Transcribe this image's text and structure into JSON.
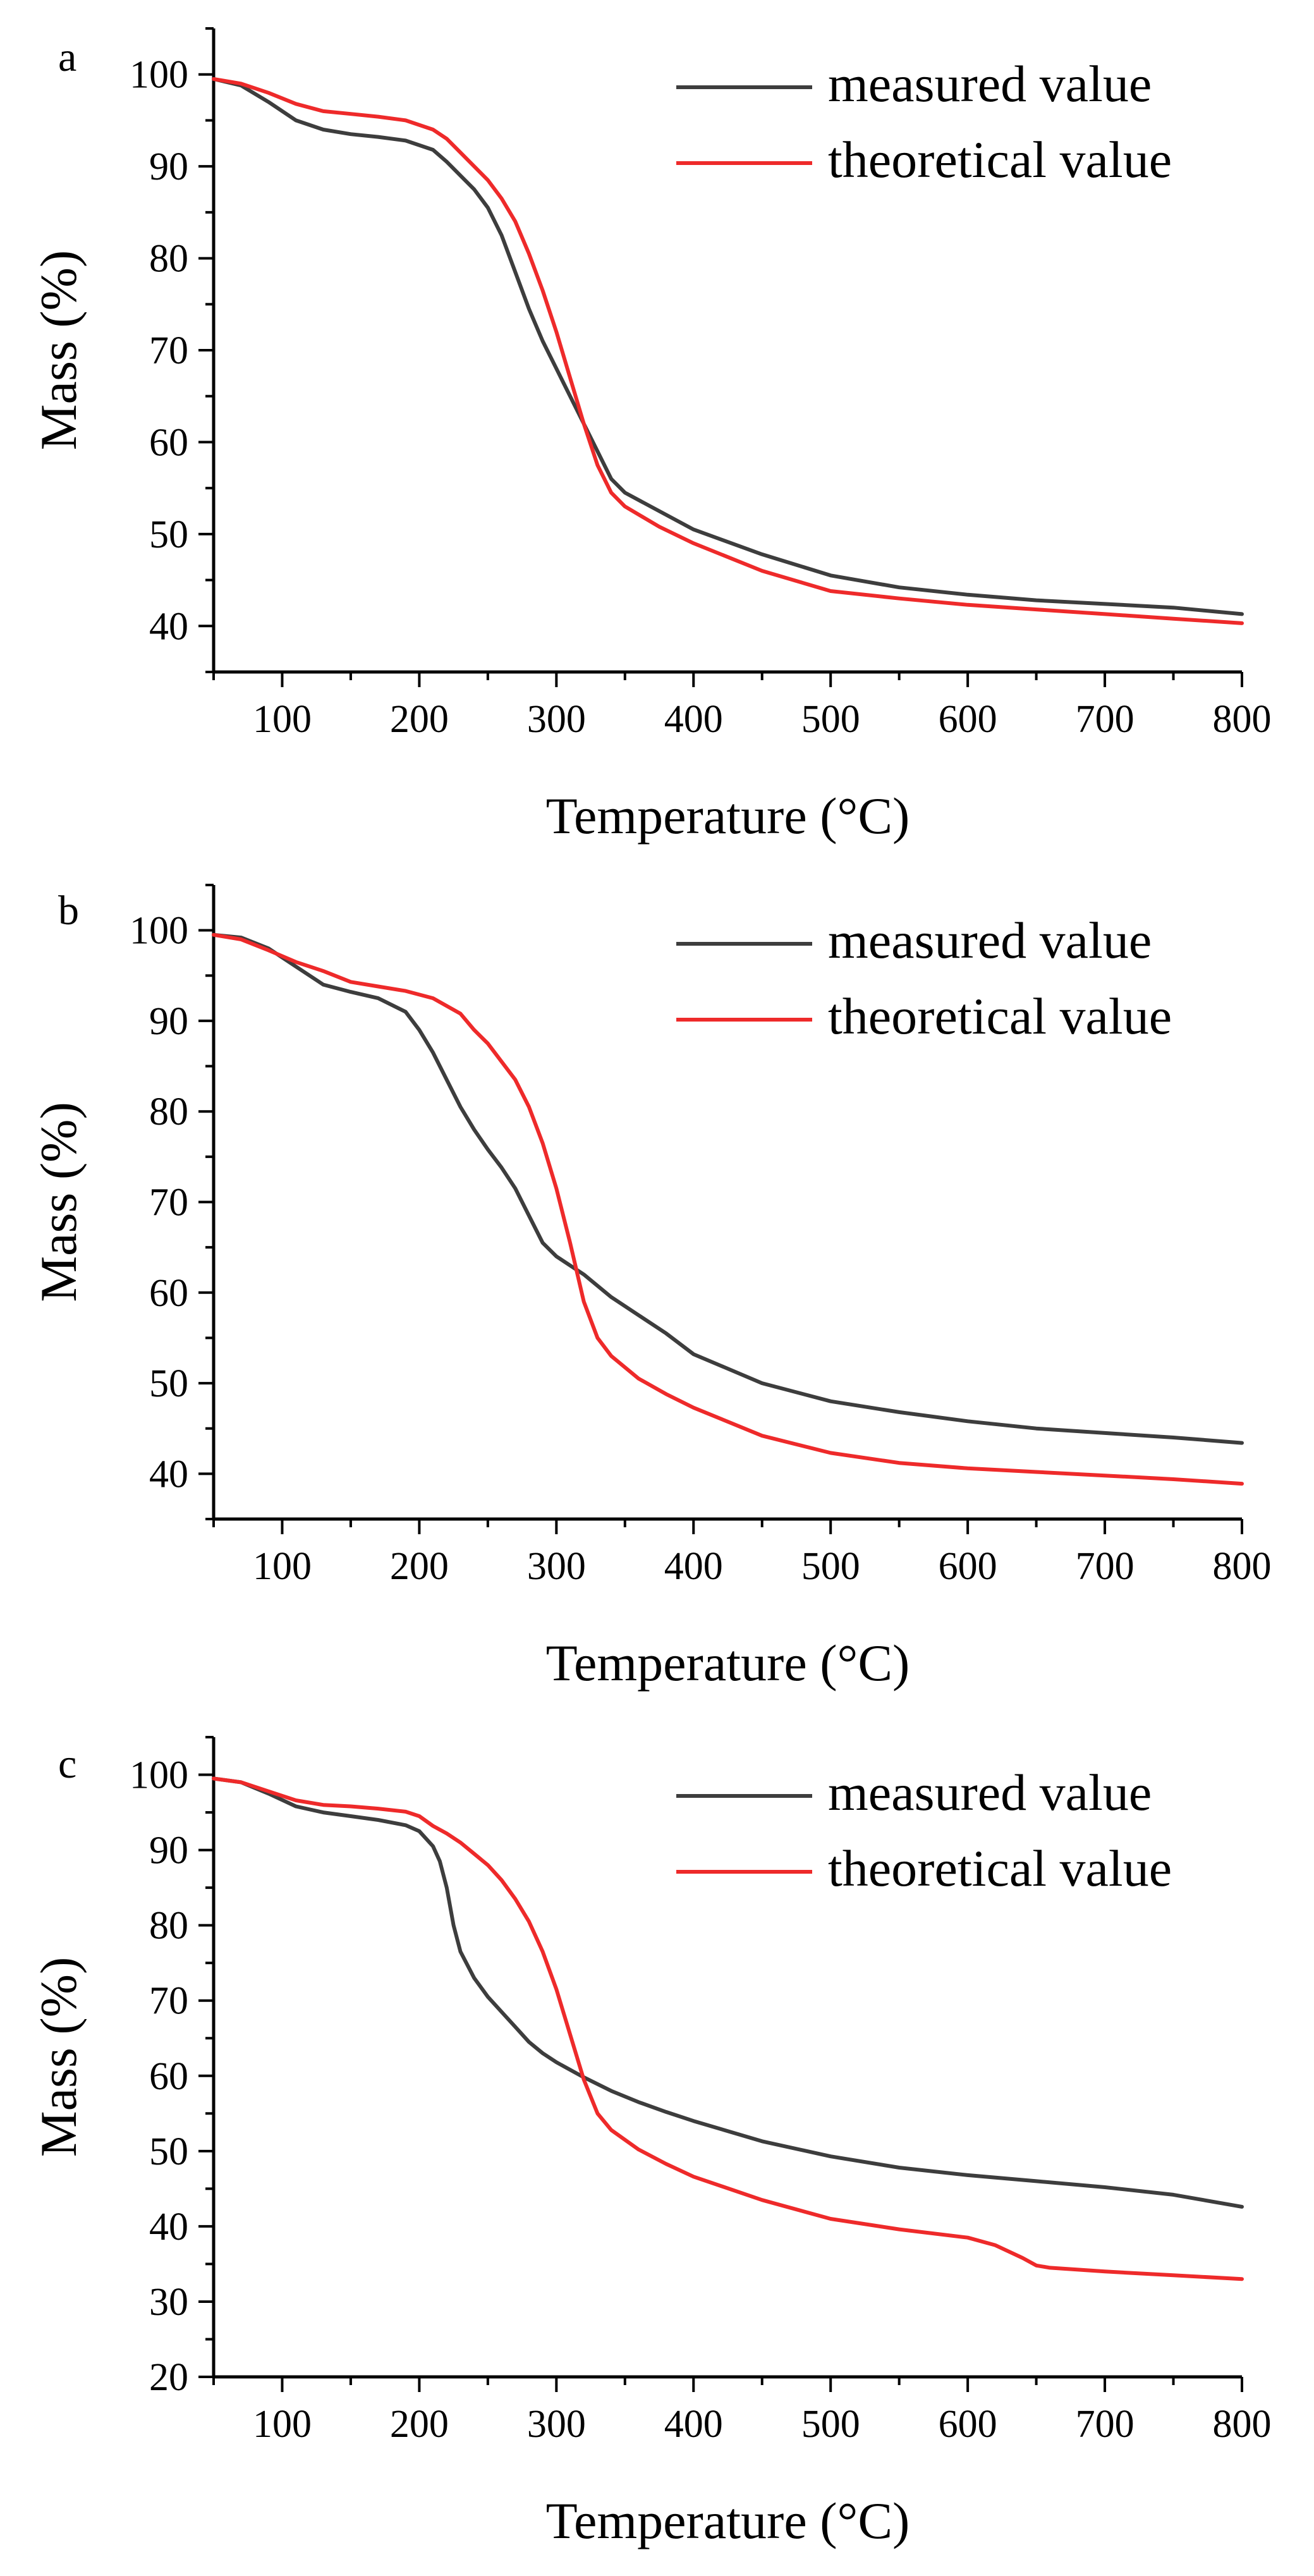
{
  "colors": {
    "measured": "#3d3d3d",
    "theoretical": "#ee2a2a"
  },
  "chart_data": [
    {
      "type": "line",
      "panel_label": "a",
      "xlabel": "Temperature (°C)",
      "ylabel": "Mass (%)",
      "xlim": [
        50,
        800
      ],
      "ylim": [
        35,
        105
      ],
      "xticks": [
        100,
        200,
        300,
        400,
        500,
        600,
        700,
        800
      ],
      "yticks": [
        40,
        50,
        60,
        70,
        80,
        90,
        100
      ],
      "legend_position": "top-right",
      "series": [
        {
          "name": "measured value",
          "color_key": "measured",
          "x": [
            50,
            70,
            90,
            110,
            130,
            150,
            170,
            190,
            210,
            220,
            230,
            240,
            250,
            260,
            270,
            280,
            290,
            300,
            310,
            320,
            330,
            340,
            350,
            375,
            400,
            450,
            500,
            550,
            600,
            650,
            700,
            750,
            800
          ],
          "y": [
            99.5,
            98.8,
            97.0,
            95.0,
            94.0,
            93.5,
            93.2,
            92.8,
            91.8,
            90.5,
            89.0,
            87.5,
            85.5,
            82.5,
            78.5,
            74.5,
            71.0,
            68.0,
            65.0,
            62.0,
            59.0,
            56.0,
            54.5,
            52.5,
            50.5,
            47.8,
            45.5,
            44.2,
            43.4,
            42.8,
            42.4,
            42.0,
            41.3
          ]
        },
        {
          "name": "theoretical value",
          "color_key": "theoretical",
          "x": [
            50,
            70,
            90,
            110,
            130,
            150,
            170,
            190,
            210,
            220,
            230,
            240,
            250,
            260,
            270,
            280,
            290,
            300,
            310,
            320,
            330,
            340,
            350,
            375,
            400,
            450,
            500,
            550,
            600,
            650,
            700,
            750,
            800
          ],
          "y": [
            99.5,
            99.0,
            98.0,
            96.8,
            96.0,
            95.7,
            95.4,
            95.0,
            94.0,
            93.0,
            91.5,
            90.0,
            88.5,
            86.5,
            84.0,
            80.5,
            76.5,
            72.0,
            67.0,
            62.0,
            57.5,
            54.5,
            53.0,
            50.8,
            49.0,
            46.0,
            43.8,
            43.0,
            42.3,
            41.8,
            41.3,
            40.8,
            40.3
          ]
        }
      ]
    },
    {
      "type": "line",
      "panel_label": "b",
      "xlabel": "Temperature (°C)",
      "ylabel": "Mass (%)",
      "xlim": [
        50,
        800
      ],
      "ylim": [
        35,
        105
      ],
      "xticks": [
        100,
        200,
        300,
        400,
        500,
        600,
        700,
        800
      ],
      "yticks": [
        40,
        50,
        60,
        70,
        80,
        90,
        100
      ],
      "legend_position": "top-right",
      "series": [
        {
          "name": "measured value",
          "color_key": "measured",
          "x": [
            50,
            70,
            90,
            110,
            130,
            150,
            170,
            190,
            200,
            210,
            220,
            230,
            240,
            250,
            260,
            270,
            280,
            290,
            300,
            320,
            340,
            360,
            380,
            400,
            450,
            500,
            550,
            600,
            650,
            700,
            750,
            800
          ],
          "y": [
            99.5,
            99.2,
            98.0,
            96.0,
            94.0,
            93.2,
            92.5,
            91.0,
            89.0,
            86.5,
            83.5,
            80.5,
            78.0,
            75.8,
            73.8,
            71.5,
            68.5,
            65.5,
            64.0,
            62.0,
            59.5,
            57.5,
            55.5,
            53.2,
            50.0,
            48.0,
            46.8,
            45.8,
            45.0,
            44.5,
            44.0,
            43.4
          ]
        },
        {
          "name": "theoretical value",
          "color_key": "theoretical",
          "x": [
            50,
            70,
            90,
            110,
            130,
            150,
            170,
            190,
            210,
            230,
            240,
            250,
            260,
            270,
            280,
            290,
            300,
            310,
            320,
            330,
            340,
            360,
            380,
            400,
            450,
            500,
            550,
            600,
            650,
            700,
            750,
            800
          ],
          "y": [
            99.5,
            99.0,
            97.8,
            96.5,
            95.5,
            94.3,
            93.8,
            93.3,
            92.5,
            90.8,
            89.0,
            87.5,
            85.5,
            83.5,
            80.5,
            76.5,
            71.5,
            65.5,
            59.0,
            55.0,
            53.0,
            50.5,
            48.8,
            47.3,
            44.2,
            42.3,
            41.2,
            40.6,
            40.2,
            39.8,
            39.4,
            38.9
          ]
        }
      ]
    },
    {
      "type": "line",
      "panel_label": "c",
      "xlabel": "Temperature (°C)",
      "ylabel": "Mass (%)",
      "xlim": [
        50,
        800
      ],
      "ylim": [
        20,
        105
      ],
      "xticks": [
        100,
        200,
        300,
        400,
        500,
        600,
        700,
        800
      ],
      "yticks": [
        20,
        30,
        40,
        50,
        60,
        70,
        80,
        90,
        100
      ],
      "legend_position": "top-right",
      "series": [
        {
          "name": "measured value",
          "color_key": "measured",
          "x": [
            50,
            70,
            90,
            110,
            130,
            150,
            170,
            190,
            200,
            210,
            215,
            220,
            225,
            230,
            240,
            250,
            260,
            270,
            280,
            290,
            300,
            320,
            340,
            360,
            380,
            400,
            450,
            500,
            550,
            600,
            650,
            700,
            750,
            800
          ],
          "y": [
            99.5,
            99.0,
            97.5,
            95.8,
            95.0,
            94.5,
            94.0,
            93.3,
            92.5,
            90.5,
            88.5,
            85.0,
            80.0,
            76.5,
            73.0,
            70.5,
            68.5,
            66.5,
            64.5,
            63.0,
            61.8,
            59.8,
            58.0,
            56.5,
            55.2,
            54.0,
            51.3,
            49.3,
            47.8,
            46.8,
            46.0,
            45.2,
            44.2,
            42.6
          ]
        },
        {
          "name": "theoretical value",
          "color_key": "theoretical",
          "x": [
            50,
            70,
            90,
            110,
            130,
            150,
            170,
            190,
            200,
            210,
            220,
            230,
            240,
            250,
            260,
            270,
            280,
            290,
            300,
            310,
            320,
            330,
            340,
            360,
            380,
            400,
            450,
            500,
            550,
            600,
            620,
            640,
            650,
            660,
            700,
            750,
            800
          ],
          "y": [
            99.5,
            99.0,
            97.8,
            96.6,
            96.0,
            95.8,
            95.5,
            95.1,
            94.5,
            93.2,
            92.2,
            91.0,
            89.5,
            88.0,
            86.0,
            83.5,
            80.5,
            76.5,
            71.5,
            65.5,
            59.5,
            55.0,
            52.8,
            50.2,
            48.3,
            46.6,
            43.5,
            41.0,
            39.6,
            38.5,
            37.5,
            35.8,
            34.8,
            34.5,
            34.0,
            33.5,
            33.0
          ]
        }
      ]
    }
  ]
}
